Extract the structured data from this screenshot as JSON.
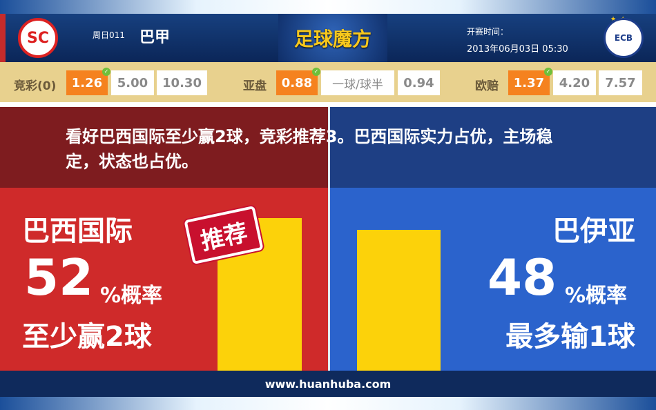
{
  "header": {
    "home_logo": "SC Internacional",
    "away_logo": "EC Bahia",
    "league_code": "周日011",
    "league": "巴甲",
    "brand": "足球魔方",
    "time_label": "开赛时间：",
    "time": "2013年06月03日 05:30"
  },
  "odds": {
    "jingcai": {
      "label": "竞彩(0)",
      "values": [
        "1.26",
        "5.00",
        "10.30"
      ],
      "selected": 0
    },
    "yapan": {
      "label": "亚盘",
      "values": [
        "0.88",
        "一球/球半",
        "0.94"
      ],
      "selected": 0
    },
    "oupei": {
      "label": "欧赔",
      "values": [
        "1.37",
        "4.20",
        "7.57"
      ],
      "selected": 0
    }
  },
  "message": "看好巴西国际至少赢2球，竞彩推荐3。巴西国际实力占优，主场稳定，状态也占优。",
  "home": {
    "name": "巴西国际",
    "percent": "52",
    "percent_label": "%概率",
    "result": "至少赢2球",
    "stamp": "推荐",
    "color": "#cf2a2a"
  },
  "away": {
    "name": "巴伊亚",
    "percent": "48",
    "percent_label": "%概率",
    "result": "最多输1球",
    "color": "#2b63cc"
  },
  "footer": {
    "url": "www.huanhuba.com"
  }
}
